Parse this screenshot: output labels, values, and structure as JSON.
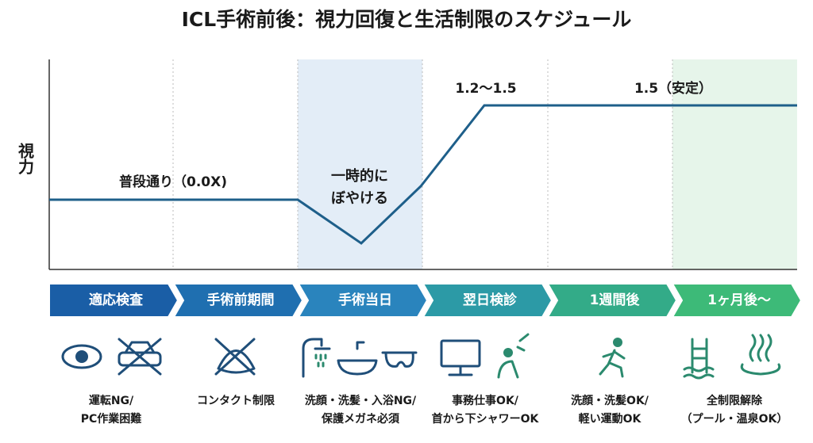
{
  "header": {
    "title": "ICL手術前後：視力回復と生活制限のスケジュール"
  },
  "graph": {
    "y_label": "視力",
    "annotations": {
      "normal": "普段通り（0.0X)",
      "blur": [
        "一時的に",
        "ぼやける"
      ],
      "peak": "1.2〜1.5",
      "stable": "1.5（安定）"
    }
  },
  "phases": [
    "適応検査",
    "手術前期間",
    "手術当日",
    "翌日検診",
    "1週間後",
    "1ヶ月後〜"
  ],
  "restrictions": [
    [
      "運転NG/",
      "PC作業困難"
    ],
    [
      "コンタクト制限"
    ],
    [
      "洗顔・洗髪・入浴NG/",
      "保護メガネ必須"
    ],
    [
      "事務仕事OK/",
      "首から下シャワーOK"
    ],
    [
      "洗顔・洗髪OK/",
      "軽い運動OK"
    ],
    [
      "全制限解除",
      "（プール・温泉OK）"
    ]
  ]
}
